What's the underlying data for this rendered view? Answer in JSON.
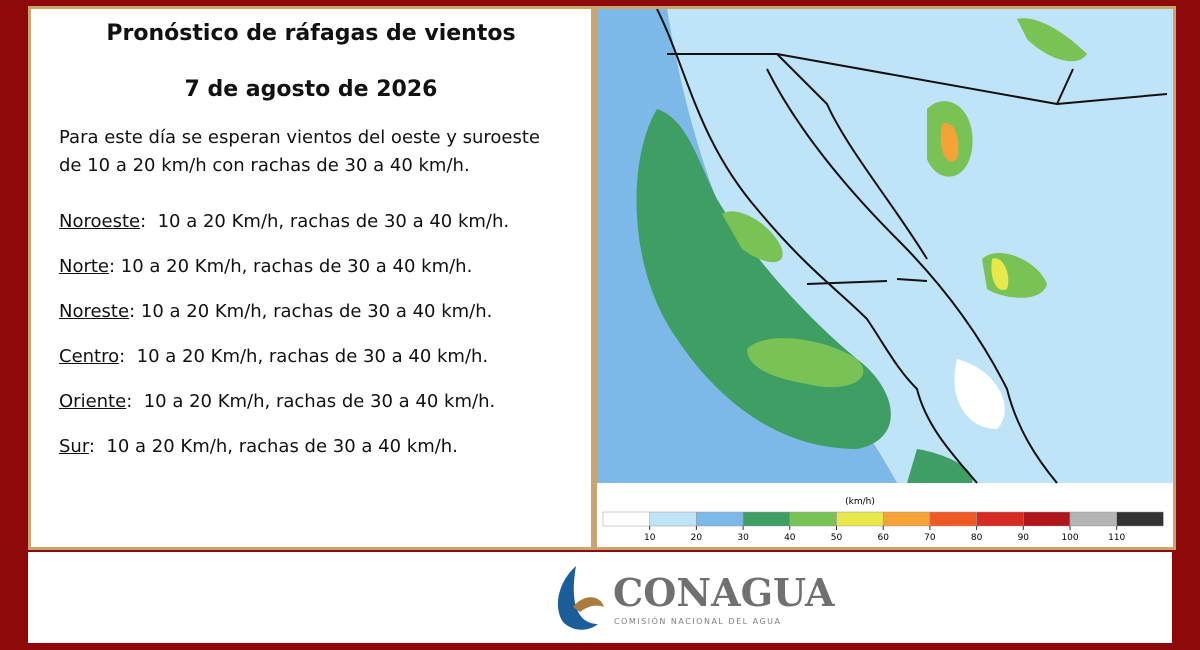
{
  "header": {
    "title": "Pronóstico de ráfagas de vientos",
    "date": "7 de agosto de 2026"
  },
  "intro": [
    "Para este día se esperan vientos del oeste y suroeste",
    "de 10 a 20 km/h con rachas de 30 a 40 km/h."
  ],
  "regions": [
    {
      "name": "Noroeste",
      "text": ":  10 a 20 Km/h, rachas de 30 a 40 km/h."
    },
    {
      "name": "Norte",
      "text": ": 10 a 20 Km/h, rachas de 30 a 40 km/h."
    },
    {
      "name": "Noreste",
      "text": ": 10 a 20 Km/h, rachas de 30 a 40 km/h."
    },
    {
      "name": "Centro",
      "text": ":  10 a 20 Km/h, rachas de 30 a 40 km/h."
    },
    {
      "name": "Oriente",
      "text": ":  10 a 20 Km/h, rachas de 30 a 40 km/h."
    },
    {
      "name": "Sur",
      "text": ":  10 a 20 Km/h, rachas de 30 a 40 km/h."
    }
  ],
  "legend": {
    "unit": "(km/h)",
    "ticks": [
      10,
      20,
      30,
      40,
      50,
      60,
      70,
      80,
      90,
      100,
      110
    ],
    "colors": [
      "#ffffff",
      "#bfe3f7",
      "#7cb9e8",
      "#3e9e64",
      "#79c256",
      "#e8e84a",
      "#f5a236",
      "#ef5a24",
      "#d62a22",
      "#b0141c",
      "#b4b4b4",
      "#333333"
    ]
  },
  "logo": {
    "name": "CONAGUA",
    "subtitle": "COMISIÓN NACIONAL DEL AGUA"
  }
}
